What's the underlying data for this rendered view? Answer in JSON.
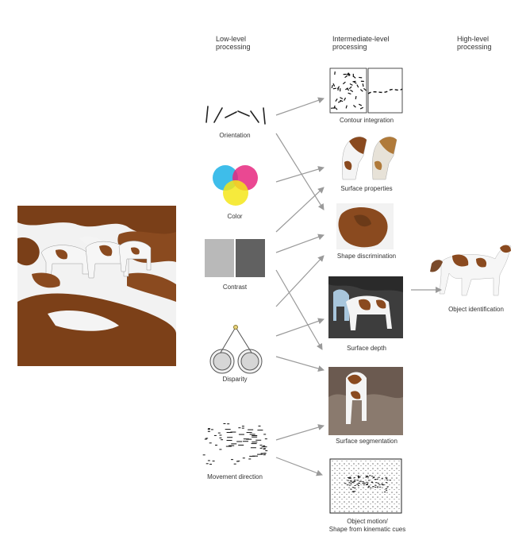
{
  "headers": {
    "low": [
      "Low-level",
      "processing"
    ],
    "intermediate": [
      "Intermediate-level",
      "processing"
    ],
    "high": [
      "High-level",
      "processing"
    ]
  },
  "low_level": {
    "orientation": "Orientation",
    "color": "Color",
    "contrast": "Contrast",
    "disparity": "Disparity",
    "movement": "Movement direction"
  },
  "intermediate": {
    "contour": "Contour integration",
    "surface_properties": "Surface properties",
    "shape_discrimination": "Shape discrimination",
    "surface_depth": "Surface depth",
    "surface_segmentation": "Surface segmentation",
    "object_motion": [
      "Object motion/",
      "Shape from kinematic cues"
    ]
  },
  "high_level": {
    "object_identification": "Object identification"
  },
  "colors": {
    "arrow": "#9a9a9a",
    "horse_brown": "#8a4a1f",
    "snow": "#f4f4f4",
    "rock_dark": "#6b3a18",
    "cyan": "#29b6e8",
    "magenta": "#e6287f",
    "yellow": "#f4e61a",
    "contrast_light": "#b9b9b9",
    "contrast_dark": "#616161"
  }
}
